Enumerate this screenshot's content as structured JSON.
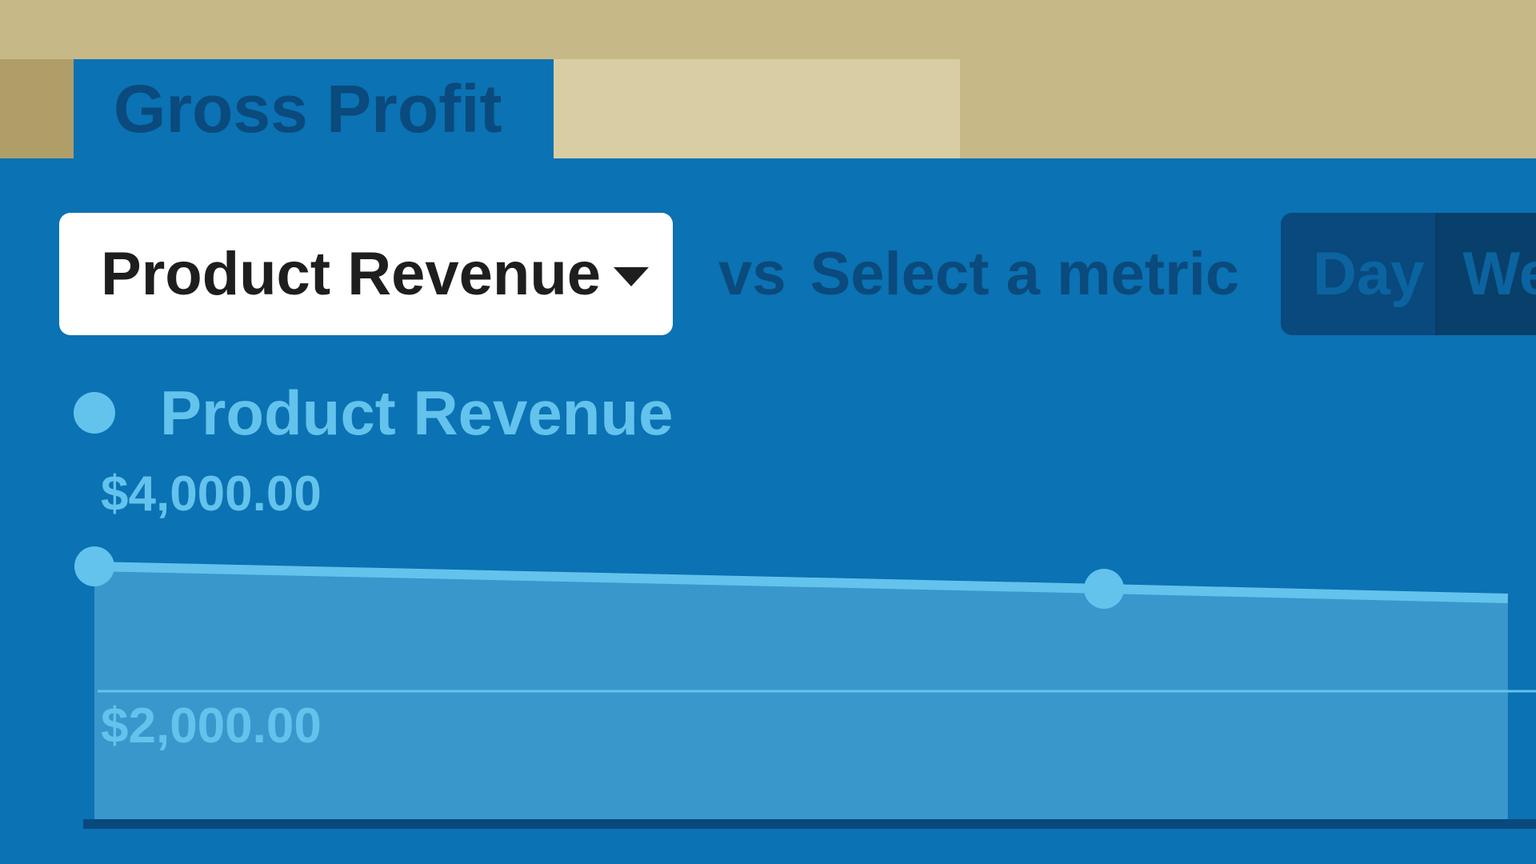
{
  "tabs": {
    "active_label": "Gross Profit"
  },
  "toolbar": {
    "metric_selected": "Product Revenue",
    "vs_label": "vs",
    "compare_placeholder": "Select a metric",
    "period_options": [
      "Day",
      "We"
    ]
  },
  "legend": {
    "series_name": "Product Revenue"
  },
  "colors": {
    "background_tan": "#c6b887",
    "panel_blue": "#0b72b3",
    "series_light_blue": "#63c3ec",
    "dark_blue_text": "#0a4a7c"
  },
  "chart_data": {
    "type": "area",
    "series": [
      {
        "name": "Product Revenue",
        "x": [
          0,
          1,
          1.4
        ],
        "y": [
          3950,
          3600,
          3450
        ],
        "markers": [
          0,
          1
        ]
      }
    ],
    "ytick_labels": [
      "$4,000.00",
      "$2,000.00"
    ],
    "yticks": [
      4000,
      2000
    ],
    "ylim": [
      0,
      5000
    ],
    "grid": true,
    "legend_position": "top-left"
  }
}
